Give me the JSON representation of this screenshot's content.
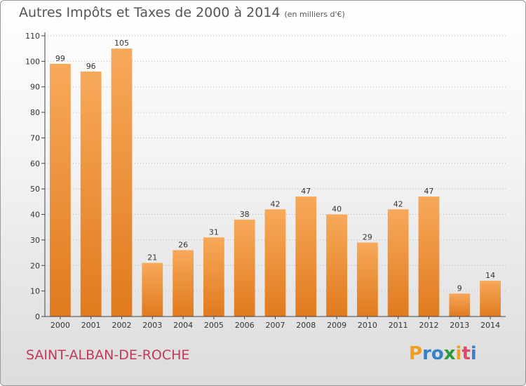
{
  "title": "Autres Impôts et Taxes de 2000 à 2014",
  "unit_note": "(en milliers d'€)",
  "commune": "SAINT-ALBAN-DE-ROCHE",
  "logo": {
    "letters": [
      "P",
      "r",
      "o",
      "x",
      "i",
      "t",
      "i"
    ],
    "colors": [
      "#f0a020",
      "#3a80c8",
      "#3a80c8",
      "#2e9a3e",
      "#f0a020",
      "#e04a6a",
      "#3a80c8"
    ]
  },
  "colors": {
    "bar_light": "#f7a95a",
    "bar_dark": "#e07a1e",
    "commune_text": "#c03a5a"
  },
  "chart_data": {
    "type": "bar",
    "title": "Autres Impôts et Taxes de 2000 à 2014",
    "subtitle": "(en milliers d'€)",
    "categories": [
      "2000",
      "2001",
      "2002",
      "2003",
      "2004",
      "2005",
      "2006",
      "2007",
      "2008",
      "2009",
      "2010",
      "2011",
      "2012",
      "2013",
      "2014"
    ],
    "values": [
      99,
      96,
      105,
      21,
      26,
      31,
      38,
      42,
      47,
      40,
      29,
      42,
      47,
      9,
      14
    ],
    "ylim": [
      0,
      110
    ],
    "yticks": [
      0,
      10,
      20,
      30,
      40,
      50,
      60,
      70,
      80,
      90,
      100,
      110
    ],
    "grid": true,
    "xlabel": "",
    "ylabel": ""
  }
}
